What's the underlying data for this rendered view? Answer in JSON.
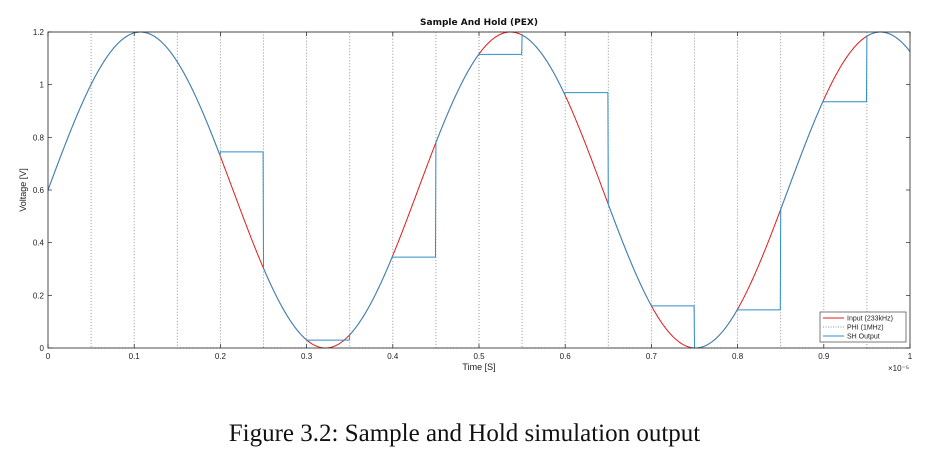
{
  "chart_data": {
    "type": "line",
    "title": "Sample And Hold (PEX)",
    "xlabel": "Time [S]",
    "ylabel": "Voltage [V]",
    "x_exponent_label": "×10⁻⁵",
    "xlim": [
      0,
      1
    ],
    "ylim": [
      0,
      1.2
    ],
    "x_ticks": [
      "0",
      "0.1",
      "0.2",
      "0.3",
      "0.4",
      "0.5",
      "0.6",
      "0.7",
      "0.8",
      "0.9",
      "1"
    ],
    "y_ticks": [
      "0",
      "0.2",
      "0.4",
      "0.6",
      "0.8",
      "1",
      "1.2"
    ],
    "grid": false,
    "legend_position": "bottom-right",
    "input_signal": {
      "offset": 0.6,
      "amplitude": 0.6,
      "frequency_per_unit": 2.33,
      "phase_rad": 0
    },
    "series": [
      {
        "name": "Input (233kHz)",
        "color": "#e41a1c",
        "style": "solid"
      },
      {
        "name": "PHI (1MHz)",
        "color": "#6a9fd0",
        "style": "dotted"
      },
      {
        "name": "SH Output",
        "color": "#2f8fc8",
        "style": "solid"
      }
    ],
    "phi": {
      "period": 0.1,
      "high_start": 0.0,
      "high_end": 0.05,
      "low": 0,
      "high": 1.2
    },
    "sh_output_holds": [
      {
        "start": 0.2,
        "end": 0.25,
        "value": 0.745
      },
      {
        "start": 0.3,
        "end": 0.35,
        "value": 0.03
      },
      {
        "start": 0.4,
        "end": 0.45,
        "value": 0.345
      },
      {
        "start": 0.5,
        "end": 0.55,
        "value": 1.115
      },
      {
        "start": 0.6,
        "end": 0.65,
        "value": 0.97
      },
      {
        "start": 0.7,
        "end": 0.75,
        "value": 0.16
      },
      {
        "start": 0.8,
        "end": 0.85,
        "value": 0.145
      },
      {
        "start": 0.9,
        "end": 0.95,
        "value": 0.935
      }
    ]
  },
  "caption": "Figure 3.2: Sample and Hold simulation output",
  "colors": {
    "axes": "#222222",
    "phi_line": "#888888"
  }
}
